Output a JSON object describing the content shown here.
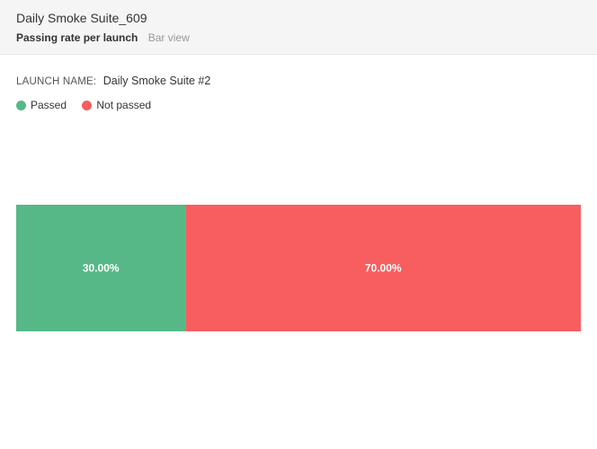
{
  "widget": {
    "title": "Daily Smoke Suite_609",
    "subtitle": "Passing rate per launch",
    "view_mode": "Bar view"
  },
  "launch": {
    "label": "LAUNCH NAME:",
    "value": "Daily Smoke Suite #2"
  },
  "legend": [
    {
      "name": "Passed",
      "color": "#56b886"
    },
    {
      "name": "Not passed",
      "color": "#f65e60"
    }
  ],
  "chart_data": {
    "type": "bar",
    "orientation": "horizontal-stacked",
    "categories": [
      "Daily Smoke Suite #2"
    ],
    "series": [
      {
        "name": "Passed",
        "values": [
          30.0
        ],
        "label": "30.00%",
        "color": "#56b886"
      },
      {
        "name": "Not passed",
        "values": [
          70.0
        ],
        "label": "70.00%",
        "color": "#f65e60"
      }
    ],
    "xlim": [
      0,
      100
    ],
    "legend_position": "top-left",
    "grid": false
  }
}
